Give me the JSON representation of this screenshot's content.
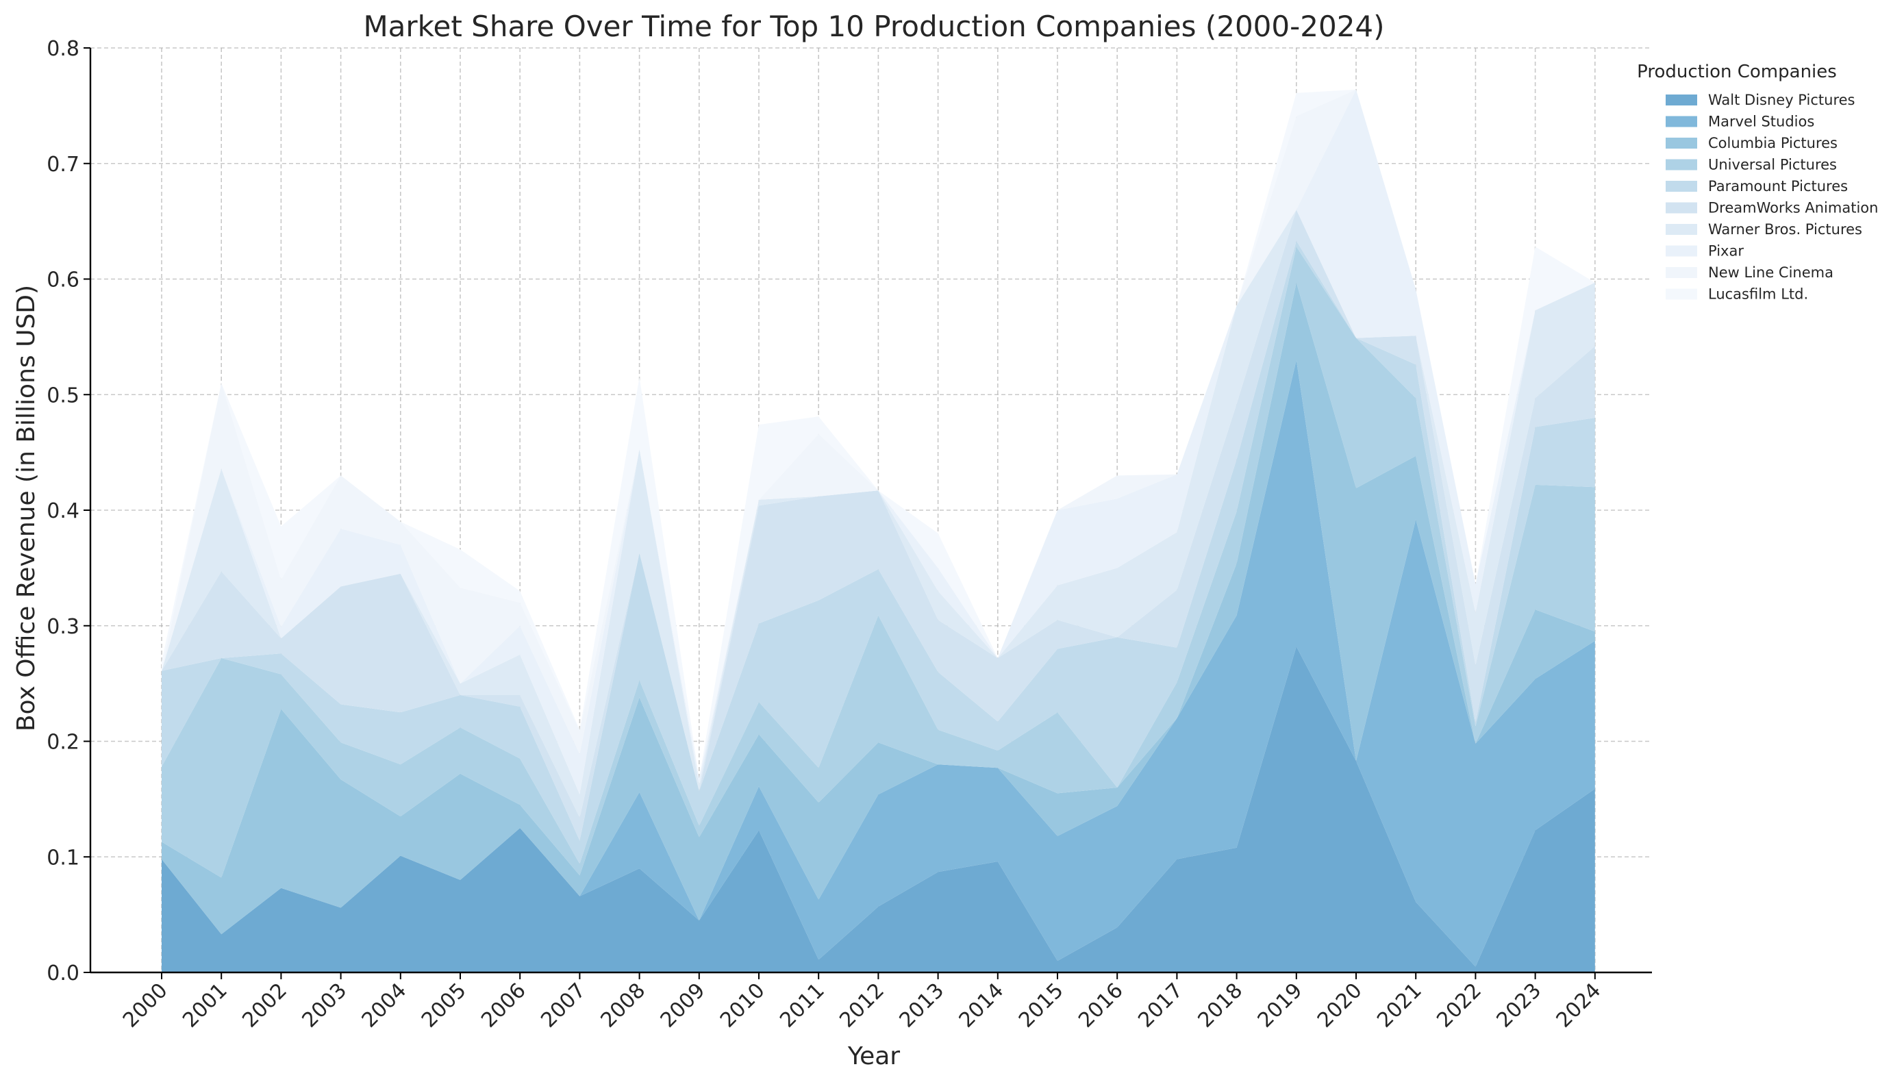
{
  "chart_data": {
    "type": "area",
    "stacked": true,
    "title": "Market Share Over Time for Top 10 Production Companies (2000-2024)",
    "xlabel": "Year",
    "ylabel": "Box Office Revenue (in Billions USD)",
    "ylim": [
      0,
      0.8
    ],
    "yticks": [
      "0.0",
      "0.1",
      "0.2",
      "0.3",
      "0.4",
      "0.5",
      "0.6",
      "0.7",
      "0.8"
    ],
    "grid": true,
    "legend_title": "Production Companies",
    "legend_position": "right-outside-top",
    "categories": [
      "2000",
      "2001",
      "2002",
      "2003",
      "2004",
      "2005",
      "2006",
      "2007",
      "2008",
      "2009",
      "2010",
      "2011",
      "2012",
      "2013",
      "2014",
      "2015",
      "2016",
      "2017",
      "2018",
      "2019",
      "2020",
      "2021",
      "2022",
      "2023",
      "2024"
    ],
    "series": [
      {
        "name": "Walt Disney Pictures",
        "color": "#6EAAD2",
        "values": [
          0.098,
          0.033,
          0.073,
          0.056,
          0.101,
          0.08,
          0.125,
          0.066,
          0.09,
          0.045,
          0.123,
          0.011,
          0.057,
          0.087,
          0.096,
          0.01,
          0.039,
          0.098,
          0.108,
          0.282,
          0.183,
          0.061,
          0.005,
          0.123,
          0.159
        ]
      },
      {
        "name": "Marvel Studios",
        "color": "#80B8DB",
        "values": [
          0.0,
          0.0,
          0.0,
          0.0,
          0.0,
          0.0,
          0.0,
          0.0,
          0.066,
          0.0,
          0.038,
          0.052,
          0.097,
          0.093,
          0.081,
          0.108,
          0.105,
          0.122,
          0.201,
          0.248,
          0.0,
          0.331,
          0.193,
          0.131,
          0.128
        ]
      },
      {
        "name": "Columbia Pictures",
        "color": "#99C7E0",
        "values": [
          0.015,
          0.049,
          0.155,
          0.111,
          0.034,
          0.092,
          0.02,
          0.018,
          0.082,
          0.072,
          0.045,
          0.084,
          0.045,
          0.0,
          0.0,
          0.037,
          0.016,
          0.0,
          0.045,
          0.067,
          0.236,
          0.055,
          0.0,
          0.06,
          0.008
        ]
      },
      {
        "name": "Universal Pictures",
        "color": "#AED2E6",
        "values": [
          0.065,
          0.19,
          0.03,
          0.032,
          0.045,
          0.04,
          0.04,
          0.01,
          0.015,
          0.01,
          0.028,
          0.03,
          0.11,
          0.03,
          0.015,
          0.07,
          0.0,
          0.031,
          0.045,
          0.031,
          0.13,
          0.05,
          0.015,
          0.108,
          0.125
        ]
      },
      {
        "name": "Paramount Pictures",
        "color": "#C1DBEC",
        "values": [
          0.083,
          0.0,
          0.018,
          0.033,
          0.045,
          0.028,
          0.045,
          0.02,
          0.11,
          0.03,
          0.068,
          0.145,
          0.04,
          0.05,
          0.025,
          0.055,
          0.13,
          0.03,
          0.045,
          0.005,
          0.0,
          0.029,
          0.003,
          0.05,
          0.06
        ]
      },
      {
        "name": "DreamWorks Animation",
        "color": "#D2E3F1",
        "values": [
          0.0,
          0.075,
          0.013,
          0.102,
          0.12,
          0.0,
          0.01,
          0.02,
          0.0,
          0.0,
          0.102,
          0.09,
          0.068,
          0.045,
          0.055,
          0.025,
          0.0,
          0.05,
          0.048,
          0.027,
          0.0,
          0.025,
          0.05,
          0.025,
          0.062
        ]
      },
      {
        "name": "Warner Bros. Pictures",
        "color": "#DDEAF5",
        "values": [
          0.0,
          0.089,
          0.0,
          0.0,
          0.0,
          0.01,
          0.035,
          0.02,
          0.09,
          0.005,
          0.005,
          0.0,
          0.0,
          0.025,
          0.0,
          0.03,
          0.06,
          0.05,
          0.085,
          0.0,
          0.0,
          0.0,
          0.045,
          0.076,
          0.055
        ]
      },
      {
        "name": "Pixar",
        "color": "#E9F1FA",
        "values": [
          0.0,
          0.0,
          0.01,
          0.05,
          0.025,
          0.0,
          0.025,
          0.035,
          0.0,
          0.006,
          0.0,
          0.0,
          0.0,
          0.02,
          0.0,
          0.065,
          0.06,
          0.05,
          0.0,
          0.0,
          0.215,
          0.04,
          0.025,
          0.0,
          0.0
        ]
      },
      {
        "name": "New Line Cinema",
        "color": "#F0F5FB",
        "values": [
          0.0,
          0.074,
          0.041,
          0.046,
          0.02,
          0.083,
          0.02,
          0.02,
          0.0,
          0.0,
          0.0,
          0.054,
          0.0,
          0.0,
          0.0,
          0.0,
          0.02,
          0.0,
          0.0,
          0.081,
          0.0,
          0.0,
          0.0,
          0.0,
          0.0
        ]
      },
      {
        "name": "Lucasfilm Ltd.",
        "color": "#F4F8FD",
        "values": [
          0.008,
          0.0,
          0.046,
          0.0,
          0.0,
          0.033,
          0.01,
          0.001,
          0.062,
          0.0,
          0.065,
          0.015,
          0.0,
          0.03,
          0.0,
          0.0,
          0.0,
          0.0,
          0.0,
          0.02,
          0.0,
          0.0,
          0.0,
          0.055,
          0.0
        ]
      }
    ]
  }
}
